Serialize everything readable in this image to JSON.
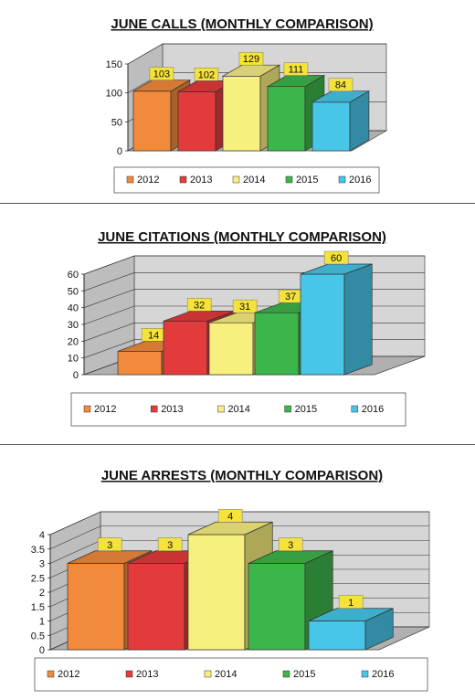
{
  "colors": {
    "2012": "#f28a3c",
    "2013": "#e33b3b",
    "2014": "#f7ef7e",
    "2015": "#3cb54a",
    "2016": "#47c6e8"
  },
  "chart_data": [
    {
      "type": "bar",
      "title": "JUNE CALLS (MONTHLY COMPARISON)",
      "categories": [
        "2012",
        "2013",
        "2014",
        "2015",
        "2016"
      ],
      "values": [
        103,
        102,
        129,
        111,
        84
      ],
      "ylim": [
        0,
        150
      ],
      "yticks": [
        "0",
        "50",
        "100",
        "150"
      ],
      "legend": "bottom",
      "grid": true
    },
    {
      "type": "bar",
      "title": "JUNE CITATIONS (MONTHLY COMPARISON)",
      "categories": [
        "2012",
        "2013",
        "2014",
        "2015",
        "2016"
      ],
      "values": [
        14,
        32,
        31,
        37,
        60
      ],
      "ylim": [
        0,
        60
      ],
      "yticks": [
        "0",
        "10",
        "20",
        "30",
        "40",
        "50",
        "60"
      ],
      "legend": "bottom",
      "grid": true
    },
    {
      "type": "bar",
      "title": "JUNE ARRESTS (MONTHLY COMPARISON)",
      "categories": [
        "2012",
        "2013",
        "2014",
        "2015",
        "2016"
      ],
      "values": [
        3,
        3,
        4,
        3,
        1
      ],
      "ylim": [
        0,
        4
      ],
      "yticks": [
        "0",
        "0.5",
        "1",
        "1.5",
        "2",
        "2.5",
        "3",
        "3.5",
        "4"
      ],
      "legend": "bottom",
      "grid": true
    }
  ]
}
